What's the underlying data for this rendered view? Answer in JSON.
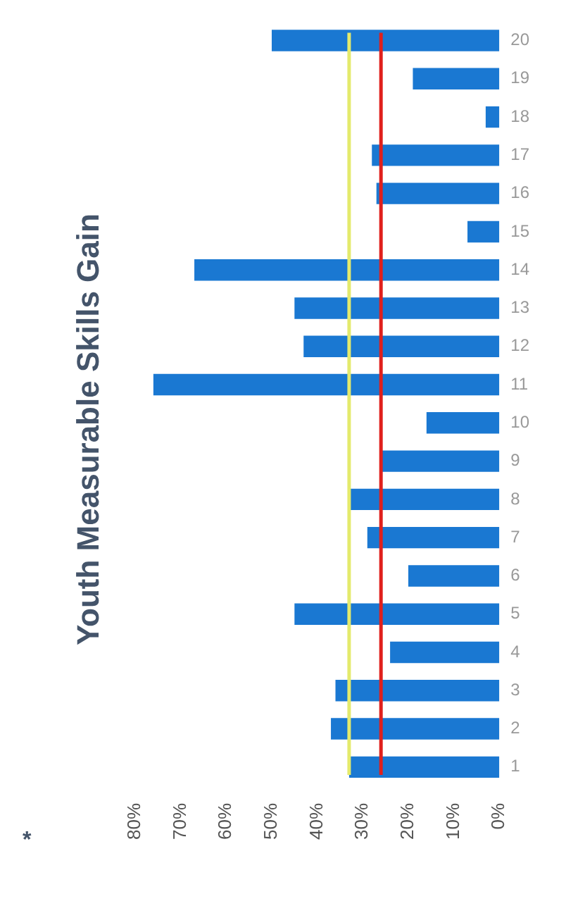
{
  "chart_data": {
    "type": "bar",
    "orientation": "horizontal",
    "title": "Youth Measurable Skills Gain",
    "categories": [
      "20",
      "19",
      "18",
      "17",
      "16",
      "15",
      "14",
      "13",
      "12",
      "11",
      "10",
      "9",
      "8",
      "7",
      "6",
      "5",
      "4",
      "3",
      "2",
      "1"
    ],
    "values": [
      50,
      19,
      3,
      28,
      27,
      7,
      67,
      45,
      43,
      76,
      16,
      26,
      33,
      29,
      20,
      45,
      24,
      36,
      37,
      33
    ],
    "color": "#1a78d2",
    "xlim": [
      80,
      0
    ],
    "xticks": [
      {
        "value": 80,
        "label": "80%"
      },
      {
        "value": 70,
        "label": "70%"
      },
      {
        "value": 60,
        "label": "60%"
      },
      {
        "value": 50,
        "label": "50%"
      },
      {
        "value": 40,
        "label": "40%"
      },
      {
        "value": 30,
        "label": "30%"
      },
      {
        "value": 20,
        "label": "20%"
      },
      {
        "value": 10,
        "label": "10%"
      },
      {
        "value": 0,
        "label": "0%"
      }
    ],
    "ref_lines": [
      {
        "axis": "x",
        "value": 33,
        "color": "#e4ea6c"
      },
      {
        "axis": "x",
        "value": 26,
        "color": "#e0201c"
      }
    ],
    "annotations": [
      "*"
    ],
    "grid": false,
    "legend": false
  }
}
